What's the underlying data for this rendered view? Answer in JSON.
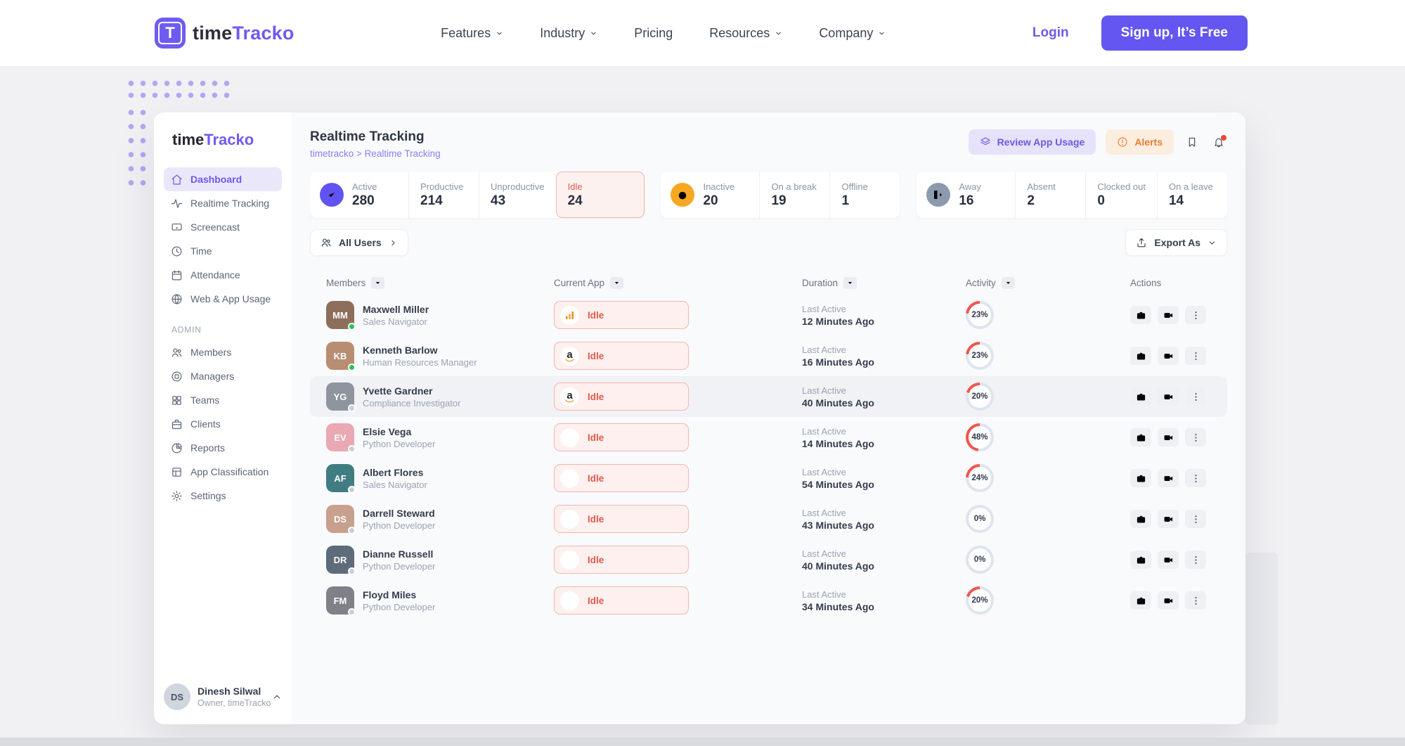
{
  "nav": {
    "brand": {
      "logo_letter": "T",
      "name_prefix": "time",
      "name_suffix": "Tracko"
    },
    "items": [
      {
        "label": "Features",
        "dropdown": true
      },
      {
        "label": "Industry",
        "dropdown": true
      },
      {
        "label": "Pricing",
        "dropdown": false
      },
      {
        "label": "Resources",
        "dropdown": true
      },
      {
        "label": "Company",
        "dropdown": true
      }
    ],
    "login_label": "Login",
    "signup_label": "Sign up, It’s Free"
  },
  "colors": {
    "accent_purple": "#6e5bf0",
    "idle_red": "#e2584d",
    "inactive_orange": "#f6a823",
    "away_gray": "#8c9aae",
    "activity_arc": "#f0564d"
  },
  "dashboard": {
    "sidebar": {
      "brand_prefix": "time",
      "brand_suffix": "Tracko",
      "items": [
        {
          "label": "Dashboard",
          "icon": "home",
          "active": true
        },
        {
          "label": "Realtime Tracking",
          "icon": "activity",
          "active": false
        },
        {
          "label": "Screencast",
          "icon": "cast",
          "active": false
        },
        {
          "label": "Time",
          "icon": "clock",
          "active": false
        },
        {
          "label": "Attendance",
          "icon": "calendar",
          "active": false
        },
        {
          "label": "Web & App Usage",
          "icon": "globe",
          "active": false
        }
      ],
      "admin_label": "ADMIN",
      "admin_items": [
        {
          "label": "Members",
          "icon": "users",
          "active": false
        },
        {
          "label": "Managers",
          "icon": "target",
          "active": false
        },
        {
          "label": "Teams",
          "icon": "grid",
          "active": false
        },
        {
          "label": "Clients",
          "icon": "briefcase",
          "active": false
        },
        {
          "label": "Reports",
          "icon": "pie",
          "active": false
        },
        {
          "label": "App Classification",
          "icon": "layout",
          "active": false
        },
        {
          "label": "Settings",
          "icon": "gear",
          "active": false
        }
      ],
      "profile": {
        "name": "Dinesh Silwal",
        "role": "Owner, timeTracko",
        "avatar_initials": "DS"
      }
    },
    "header": {
      "title": "Realtime Tracking",
      "breadcrumb": "timetracko > Realtime Tracking",
      "review_button": "Review App Usage",
      "alerts_button": "Alerts"
    },
    "stats_groups": [
      {
        "icon": "check",
        "icon_bg": "#6153f2",
        "cells": [
          {
            "label": "Active",
            "value": "280"
          },
          {
            "label": "Productive",
            "value": "214"
          },
          {
            "label": "Unproductive",
            "value": "43"
          },
          {
            "label": "Idle",
            "value": "24",
            "highlight": true
          }
        ]
      },
      {
        "icon": "alarm",
        "icon_bg": "#f6a823",
        "cells": [
          {
            "label": "Inactive",
            "value": "20"
          },
          {
            "label": "On a break",
            "value": "19"
          },
          {
            "label": "Offline",
            "value": "1"
          }
        ]
      },
      {
        "icon": "exit",
        "icon_bg": "#8c9aae",
        "cells": [
          {
            "label": "Away",
            "value": "16"
          },
          {
            "label": "Absent",
            "value": "2"
          },
          {
            "label": "Clocked out",
            "value": "0"
          },
          {
            "label": "On a leave",
            "value": "14"
          }
        ]
      }
    ],
    "toolbar": {
      "filter_label": "All Users",
      "export_label": "Export As"
    },
    "table": {
      "columns": [
        {
          "label": "Members",
          "filterable": true
        },
        {
          "label": "Current App",
          "filterable": true
        },
        {
          "label": "Duration",
          "filterable": true
        },
        {
          "label": "Activity",
          "filterable": true
        },
        {
          "label": "Actions",
          "filterable": false
        }
      ],
      "rows": [
        {
          "name": "Maxwell Miller",
          "role": "Sales Navigator",
          "avatar_initials": "MM",
          "avatar_bg": "#8d6e5a",
          "status_color": "#23c55e",
          "app": {
            "icon": "bar-chart",
            "label": "Idle"
          },
          "duration_label": "Last Active",
          "duration": "12 Minutes Ago",
          "activity_pct": 23,
          "highlight": false
        },
        {
          "name": "Kenneth Barlow",
          "role": "Human Resources Manager",
          "avatar_initials": "KB",
          "avatar_bg": "#b98d72",
          "status_color": "#23c55e",
          "app": {
            "icon": "amazon",
            "label": "Idle"
          },
          "duration_label": "Last Active",
          "duration": "16 Minutes Ago",
          "activity_pct": 23,
          "highlight": false
        },
        {
          "name": "Yvette Gardner",
          "role": "Compliance Investigator",
          "avatar_initials": "YG",
          "avatar_bg": "#8e959f",
          "status_color": "#c7ced8",
          "app": {
            "icon": "amazon",
            "label": "Idle"
          },
          "duration_label": "Last Active",
          "duration": "40 Minutes Ago",
          "activity_pct": 20,
          "highlight": true
        },
        {
          "name": "Elsie Vega",
          "role": "Python Developer",
          "avatar_initials": "EV",
          "avatar_bg": "#e9a8b4",
          "status_color": "#c7ced8",
          "app": {
            "icon": "blank",
            "label": "Idle"
          },
          "duration_label": "Last Active",
          "duration": "14 Minutes Ago",
          "activity_pct": 48,
          "highlight": false
        },
        {
          "name": "Albert Flores",
          "role": "Sales Navigator",
          "avatar_initials": "AF",
          "avatar_bg": "#3f7d82",
          "status_color": "#c7ced8",
          "app": {
            "icon": "blank",
            "label": "Idle"
          },
          "duration_label": "Last Active",
          "duration": "54 Minutes Ago",
          "activity_pct": 24,
          "highlight": false
        },
        {
          "name": "Darrell Steward",
          "role": "Python Developer",
          "avatar_initials": "DS",
          "avatar_bg": "#c8a08e",
          "status_color": "#c7ced8",
          "app": {
            "icon": "blank",
            "label": "Idle"
          },
          "duration_label": "Last Active",
          "duration": "43 Minutes Ago",
          "activity_pct": 0,
          "highlight": false
        },
        {
          "name": "Dianne Russell",
          "role": "Python Developer",
          "avatar_initials": "DR",
          "avatar_bg": "#5d6b7a",
          "status_color": "#c7ced8",
          "app": {
            "icon": "blank",
            "label": "Idle"
          },
          "duration_label": "Last Active",
          "duration": "40 Minutes Ago",
          "activity_pct": 0,
          "highlight": false
        },
        {
          "name": "Floyd Miles",
          "role": "Python Developer",
          "avatar_initials": "FM",
          "avatar_bg": "#7e8187",
          "status_color": "#c7ced8",
          "app": {
            "icon": "blank",
            "label": "Idle"
          },
          "duration_label": "Last Active",
          "duration": "34 Minutes Ago",
          "activity_pct": 20,
          "highlight": false
        }
      ]
    }
  }
}
